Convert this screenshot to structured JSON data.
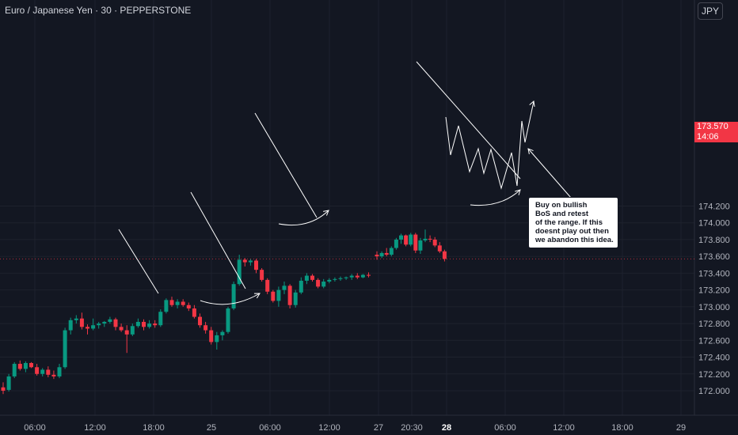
{
  "header": {
    "title": "Euro / Japanese Yen · 30 · PEPPERSTONE"
  },
  "currency_button": {
    "label": "JPY"
  },
  "price_tag": {
    "price": "173.570",
    "countdown": "14:06"
  },
  "annotation": {
    "text": "Buy on bullish\nBoS and retest\nof the range. If this\ndoesnt play out then\nwe abandon this idea."
  },
  "colors": {
    "background": "#131722",
    "up": "#089981",
    "down": "#f23645",
    "grid": "#1e222d",
    "drawing": "#ffffff",
    "axis_text": "#b2b5be"
  },
  "chart_data": {
    "type": "candlestick",
    "title": "Euro / Japanese Yen · 30 · PEPPERSTONE",
    "y_ticks": [
      "172.000",
      "172.200",
      "172.400",
      "172.600",
      "172.800",
      "173.000",
      "173.200",
      "173.400",
      "173.600",
      "173.800",
      "174.000",
      "174.200"
    ],
    "ylim": [
      171.95,
      174.25
    ],
    "x_ticks": [
      "06:00",
      "12:00",
      "18:00",
      "25",
      "06:00",
      "12:00",
      "27",
      "20:30",
      "28",
      "06:00",
      "12:00",
      "18:00",
      "29"
    ],
    "bold_x_ticks": [
      "28"
    ],
    "current_price": 173.57,
    "grid": true,
    "candles": [
      {
        "o": 172.04,
        "h": 172.1,
        "l": 171.96,
        "c": 172.0
      },
      {
        "o": 172.01,
        "h": 172.2,
        "l": 171.99,
        "c": 172.17
      },
      {
        "o": 172.17,
        "h": 172.34,
        "l": 172.15,
        "c": 172.32
      },
      {
        "o": 172.32,
        "h": 172.36,
        "l": 172.24,
        "c": 172.26
      },
      {
        "o": 172.26,
        "h": 172.35,
        "l": 172.22,
        "c": 172.33
      },
      {
        "o": 172.33,
        "h": 172.34,
        "l": 172.27,
        "c": 172.28
      },
      {
        "o": 172.28,
        "h": 172.32,
        "l": 172.18,
        "c": 172.2
      },
      {
        "o": 172.2,
        "h": 172.27,
        "l": 172.17,
        "c": 172.25
      },
      {
        "o": 172.25,
        "h": 172.29,
        "l": 172.16,
        "c": 172.19
      },
      {
        "o": 172.19,
        "h": 172.24,
        "l": 172.14,
        "c": 172.17
      },
      {
        "o": 172.17,
        "h": 172.32,
        "l": 172.15,
        "c": 172.28
      },
      {
        "o": 172.28,
        "h": 172.75,
        "l": 172.26,
        "c": 172.72
      },
      {
        "o": 172.72,
        "h": 172.87,
        "l": 172.67,
        "c": 172.84
      },
      {
        "o": 172.84,
        "h": 172.9,
        "l": 172.8,
        "c": 172.86
      },
      {
        "o": 172.86,
        "h": 172.93,
        "l": 172.73,
        "c": 172.76
      },
      {
        "o": 172.76,
        "h": 172.79,
        "l": 172.67,
        "c": 172.74
      },
      {
        "o": 172.74,
        "h": 172.86,
        "l": 172.72,
        "c": 172.78
      },
      {
        "o": 172.78,
        "h": 172.82,
        "l": 172.74,
        "c": 172.8
      },
      {
        "o": 172.8,
        "h": 172.83,
        "l": 172.76,
        "c": 172.82
      },
      {
        "o": 172.82,
        "h": 172.88,
        "l": 172.8,
        "c": 172.85
      },
      {
        "o": 172.85,
        "h": 172.87,
        "l": 172.72,
        "c": 172.76
      },
      {
        "o": 172.76,
        "h": 172.8,
        "l": 172.7,
        "c": 172.72
      },
      {
        "o": 172.72,
        "h": 172.78,
        "l": 172.45,
        "c": 172.67
      },
      {
        "o": 172.67,
        "h": 172.8,
        "l": 172.65,
        "c": 172.77
      },
      {
        "o": 172.77,
        "h": 172.86,
        "l": 172.75,
        "c": 172.82
      },
      {
        "o": 172.82,
        "h": 172.85,
        "l": 172.72,
        "c": 172.76
      },
      {
        "o": 172.76,
        "h": 172.84,
        "l": 172.74,
        "c": 172.8
      },
      {
        "o": 172.8,
        "h": 172.84,
        "l": 172.75,
        "c": 172.78
      },
      {
        "o": 172.78,
        "h": 172.97,
        "l": 172.76,
        "c": 172.94
      },
      {
        "o": 172.94,
        "h": 173.1,
        "l": 172.92,
        "c": 173.08
      },
      {
        "o": 173.08,
        "h": 173.12,
        "l": 173.0,
        "c": 173.02
      },
      {
        "o": 173.02,
        "h": 173.09,
        "l": 172.98,
        "c": 173.06
      },
      {
        "o": 173.06,
        "h": 173.09,
        "l": 173.0,
        "c": 173.02
      },
      {
        "o": 173.02,
        "h": 173.05,
        "l": 172.95,
        "c": 172.98
      },
      {
        "o": 172.98,
        "h": 173.02,
        "l": 172.86,
        "c": 172.88
      },
      {
        "o": 172.88,
        "h": 172.92,
        "l": 172.75,
        "c": 172.78
      },
      {
        "o": 172.78,
        "h": 172.82,
        "l": 172.68,
        "c": 172.72
      },
      {
        "o": 172.72,
        "h": 172.76,
        "l": 172.55,
        "c": 172.58
      },
      {
        "o": 172.58,
        "h": 172.7,
        "l": 172.49,
        "c": 172.66
      },
      {
        "o": 172.66,
        "h": 172.72,
        "l": 172.6,
        "c": 172.7
      },
      {
        "o": 172.7,
        "h": 173.0,
        "l": 172.68,
        "c": 172.98
      },
      {
        "o": 172.98,
        "h": 173.3,
        "l": 172.96,
        "c": 173.27
      },
      {
        "o": 173.27,
        "h": 173.62,
        "l": 173.25,
        "c": 173.56
      },
      {
        "o": 173.56,
        "h": 173.58,
        "l": 173.48,
        "c": 173.53
      },
      {
        "o": 173.53,
        "h": 173.57,
        "l": 173.49,
        "c": 173.55
      },
      {
        "o": 173.55,
        "h": 173.57,
        "l": 173.4,
        "c": 173.44
      },
      {
        "o": 173.44,
        "h": 173.46,
        "l": 173.3,
        "c": 173.32
      },
      {
        "o": 173.32,
        "h": 173.34,
        "l": 173.15,
        "c": 173.18
      },
      {
        "o": 173.18,
        "h": 173.2,
        "l": 173.05,
        "c": 173.07
      },
      {
        "o": 173.07,
        "h": 173.24,
        "l": 173.0,
        "c": 173.2
      },
      {
        "o": 173.2,
        "h": 173.3,
        "l": 173.15,
        "c": 173.25
      },
      {
        "o": 173.25,
        "h": 173.27,
        "l": 172.98,
        "c": 173.02
      },
      {
        "o": 173.02,
        "h": 173.2,
        "l": 172.99,
        "c": 173.17
      },
      {
        "o": 173.17,
        "h": 173.35,
        "l": 173.15,
        "c": 173.31
      },
      {
        "o": 173.31,
        "h": 173.4,
        "l": 173.27,
        "c": 173.37
      },
      {
        "o": 173.37,
        "h": 173.39,
        "l": 173.3,
        "c": 173.32
      },
      {
        "o": 173.32,
        "h": 173.34,
        "l": 173.22,
        "c": 173.24
      },
      {
        "o": 173.24,
        "h": 173.33,
        "l": 173.22,
        "c": 173.3
      },
      {
        "o": 173.3,
        "h": 173.34,
        "l": 173.28,
        "c": 173.32
      },
      {
        "o": 173.32,
        "h": 173.35,
        "l": 173.3,
        "c": 173.33
      },
      {
        "o": 173.33,
        "h": 173.36,
        "l": 173.31,
        "c": 173.34
      },
      {
        "o": 173.34,
        "h": 173.36,
        "l": 173.32,
        "c": 173.35
      },
      {
        "o": 173.35,
        "h": 173.39,
        "l": 173.32,
        "c": 173.37
      },
      {
        "o": 173.37,
        "h": 173.4,
        "l": 173.33,
        "c": 173.35
      },
      {
        "o": 173.35,
        "h": 173.39,
        "l": 173.34,
        "c": 173.38
      },
      {
        "o": 173.38,
        "h": 173.41,
        "l": 173.35,
        "c": 173.37
      },
      {
        "o": 173.62,
        "h": 173.66,
        "l": 173.56,
        "c": 173.6
      },
      {
        "o": 173.6,
        "h": 173.66,
        "l": 173.58,
        "c": 173.64
      },
      {
        "o": 173.64,
        "h": 173.7,
        "l": 173.6,
        "c": 173.62
      },
      {
        "o": 173.62,
        "h": 173.72,
        "l": 173.6,
        "c": 173.7
      },
      {
        "o": 173.7,
        "h": 173.82,
        "l": 173.68,
        "c": 173.8
      },
      {
        "o": 173.8,
        "h": 173.87,
        "l": 173.75,
        "c": 173.85
      },
      {
        "o": 173.85,
        "h": 173.86,
        "l": 173.72,
        "c": 173.74
      },
      {
        "o": 173.74,
        "h": 173.88,
        "l": 173.72,
        "c": 173.86
      },
      {
        "o": 173.86,
        "h": 173.88,
        "l": 173.64,
        "c": 173.67
      },
      {
        "o": 173.67,
        "h": 173.82,
        "l": 173.63,
        "c": 173.79
      },
      {
        "o": 173.79,
        "h": 173.92,
        "l": 173.77,
        "c": 173.81
      },
      {
        "o": 173.81,
        "h": 173.85,
        "l": 173.77,
        "c": 173.8
      },
      {
        "o": 173.8,
        "h": 173.83,
        "l": 173.71,
        "c": 173.73
      },
      {
        "o": 173.73,
        "h": 173.77,
        "l": 173.64,
        "c": 173.66
      },
      {
        "o": 173.66,
        "h": 173.68,
        "l": 173.54,
        "c": 173.57
      }
    ]
  }
}
